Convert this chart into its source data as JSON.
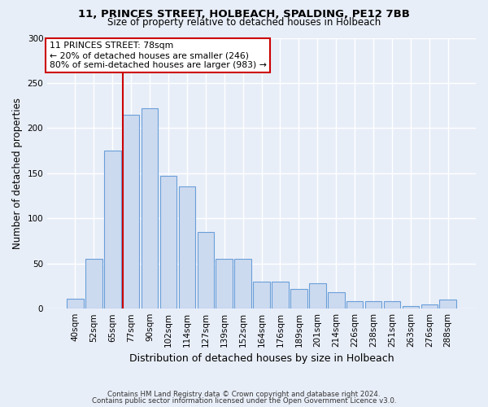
{
  "title1": "11, PRINCES STREET, HOLBEACH, SPALDING, PE12 7BB",
  "title2": "Size of property relative to detached houses in Holbeach",
  "xlabel": "Distribution of detached houses by size in Holbeach",
  "ylabel": "Number of detached properties",
  "categories": [
    "40sqm",
    "52sqm",
    "65sqm",
    "77sqm",
    "90sqm",
    "102sqm",
    "114sqm",
    "127sqm",
    "139sqm",
    "152sqm",
    "164sqm",
    "176sqm",
    "189sqm",
    "201sqm",
    "214sqm",
    "226sqm",
    "238sqm",
    "251sqm",
    "263sqm",
    "276sqm",
    "288sqm"
  ],
  "values": [
    11,
    55,
    175,
    215,
    222,
    147,
    135,
    85,
    55,
    55,
    30,
    30,
    22,
    28,
    18,
    8,
    8,
    8,
    3,
    5,
    10
  ],
  "bar_color": "#ccdaf0",
  "bar_edge_color": "#6a9fd8",
  "vline_color": "#cc0000",
  "annotation_text": "11 PRINCES STREET: 78sqm\n← 20% of detached houses are smaller (246)\n80% of semi-detached houses are larger (983) →",
  "annotation_box_color": "#ffffff",
  "annotation_box_edge_color": "#cc0000",
  "footer1": "Contains HM Land Registry data © Crown copyright and database right 2024.",
  "footer2": "Contains public sector information licensed under the Open Government Licence v3.0.",
  "ylim": [
    0,
    300
  ],
  "yticks": [
    0,
    50,
    100,
    150,
    200,
    250,
    300
  ],
  "bg_color": "#e8eef8",
  "plot_bg_color": "#e8eef8"
}
